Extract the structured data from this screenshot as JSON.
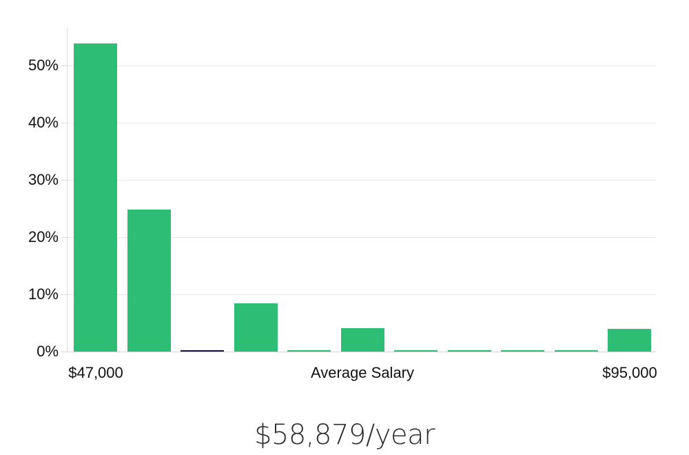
{
  "chart_data": {
    "type": "bar",
    "title": "$58,879/year",
    "ylabel": "",
    "xlabel": "",
    "ylim": [
      0,
      56.6
    ],
    "grid": "horizontal",
    "legend": "none",
    "y_ticks": [
      {
        "label": "0%",
        "value": 0
      },
      {
        "label": "10%",
        "value": 10
      },
      {
        "label": "20%",
        "value": 20
      },
      {
        "label": "30%",
        "value": 30
      },
      {
        "label": "40%",
        "value": 40
      },
      {
        "label": "50%",
        "value": 50
      }
    ],
    "x_tick_labels": [
      {
        "text": "$47,000",
        "bar_index": 0
      },
      {
        "text": "Average Salary",
        "bar_index": 5
      },
      {
        "text": "$95,000",
        "bar_index": 10
      }
    ],
    "bars": [
      {
        "value": 53.9,
        "color_key": "green"
      },
      {
        "value": 24.8,
        "color_key": "green"
      },
      {
        "value": 0.2,
        "color_key": "dark"
      },
      {
        "value": 8.4,
        "color_key": "green"
      },
      {
        "value": 0.2,
        "color_key": "green"
      },
      {
        "value": 4.1,
        "color_key": "green"
      },
      {
        "value": 0.2,
        "color_key": "green"
      },
      {
        "value": 0.2,
        "color_key": "green"
      },
      {
        "value": 0.2,
        "color_key": "green"
      },
      {
        "value": 0.2,
        "color_key": "green"
      },
      {
        "value": 4.0,
        "color_key": "green"
      }
    ],
    "colors": {
      "green": "#2ebd74",
      "dark": "#15153c",
      "gridline": "#e9e9e9",
      "axis": "#d4d4d4",
      "tick_text": "#111111",
      "title_text": "#2d2d2d"
    }
  }
}
